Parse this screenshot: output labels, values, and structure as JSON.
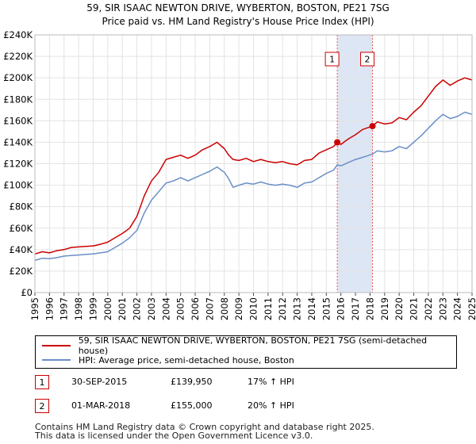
{
  "colors": {
    "property": "#cc0000",
    "hpi": "#6a8fc8",
    "shade": "#dde6f5",
    "grid": "#e3e3e3",
    "vline": "#e05a5a"
  },
  "chart_data": {
    "type": "line",
    "title": "59, SIR ISAAC NEWTON DRIVE, WYBERTON, BOSTON, PE21 7SG",
    "subtitle": "Price paid vs. HM Land Registry's House Price Index (HPI)",
    "xlabel": "",
    "ylabel": "",
    "xlim": [
      1995,
      2025
    ],
    "ylim": [
      0,
      240000
    ],
    "y_ticks": [
      {
        "value": 0,
        "label": "£0"
      },
      {
        "value": 20000,
        "label": "£20K"
      },
      {
        "value": 40000,
        "label": "£40K"
      },
      {
        "value": 60000,
        "label": "£60K"
      },
      {
        "value": 80000,
        "label": "£80K"
      },
      {
        "value": 100000,
        "label": "£100K"
      },
      {
        "value": 120000,
        "label": "£120K"
      },
      {
        "value": 140000,
        "label": "£140K"
      },
      {
        "value": 160000,
        "label": "£160K"
      },
      {
        "value": 180000,
        "label": "£180K"
      },
      {
        "value": 200000,
        "label": "£200K"
      },
      {
        "value": 220000,
        "label": "£220K"
      },
      {
        "value": 240000,
        "label": "£240K"
      }
    ],
    "x_ticks": [
      "1995",
      "1996",
      "1997",
      "1998",
      "1999",
      "2000",
      "2001",
      "2002",
      "2003",
      "2004",
      "2005",
      "2006",
      "2007",
      "2008",
      "2009",
      "2010",
      "2011",
      "2012",
      "2013",
      "2014",
      "2015",
      "2016",
      "2017",
      "2018",
      "2019",
      "2020",
      "2021",
      "2022",
      "2023",
      "2024",
      "2025"
    ],
    "shaded_period": [
      2015.75,
      2018.17
    ],
    "series": [
      {
        "name": "59, SIR ISAAC NEWTON DRIVE, WYBERTON, BOSTON, PE21 7SG (semi-detached house)",
        "color": "#cc0000",
        "x": [
          1995,
          1995.5,
          1996,
          1996.5,
          1997,
          1997.5,
          1998,
          1998.5,
          1999,
          1999.5,
          2000,
          2000.5,
          2001,
          2001.5,
          2002,
          2002.5,
          2003,
          2003.5,
          2004,
          2004.5,
          2005,
          2005.5,
          2006,
          2006.5,
          2007,
          2007.5,
          2008,
          2008.3,
          2008.6,
          2009,
          2009.5,
          2010,
          2010.5,
          2011,
          2011.5,
          2012,
          2012.5,
          2013,
          2013.5,
          2014,
          2014.5,
          2015,
          2015.5,
          2015.75,
          2016,
          2016.5,
          2017,
          2017.5,
          2018.17,
          2018.5,
          2019,
          2019.5,
          2020,
          2020.5,
          2021,
          2021.5,
          2022,
          2022.5,
          2023,
          2023.5,
          2024,
          2024.5,
          2025
        ],
        "values": [
          36000,
          38000,
          37000,
          39000,
          40000,
          42000,
          42500,
          43000,
          43500,
          45000,
          47000,
          51000,
          55000,
          60000,
          71000,
          90000,
          104000,
          112000,
          124000,
          126000,
          128000,
          125000,
          128000,
          133000,
          136000,
          140000,
          134000,
          128000,
          124000,
          123000,
          125000,
          122000,
          124000,
          122000,
          121000,
          122000,
          120000,
          119000,
          123000,
          124000,
          130000,
          133000,
          136000,
          139950,
          138000,
          143000,
          147000,
          152000,
          155000,
          159000,
          157000,
          158000,
          163000,
          161000,
          168000,
          174000,
          183000,
          192000,
          198000,
          193000,
          197000,
          200000,
          198000
        ]
      },
      {
        "name": "HPI: Average price, semi-detached house, Boston",
        "color": "#6a8fc8",
        "x": [
          1995,
          1995.5,
          1996,
          1996.5,
          1997,
          1997.5,
          1998,
          1998.5,
          1999,
          1999.5,
          2000,
          2000.5,
          2001,
          2001.5,
          2002,
          2002.5,
          2003,
          2003.5,
          2004,
          2004.5,
          2005,
          2005.5,
          2006,
          2006.5,
          2007,
          2007.5,
          2008,
          2008.3,
          2008.6,
          2009,
          2009.5,
          2010,
          2010.5,
          2011,
          2011.5,
          2012,
          2012.5,
          2013,
          2013.5,
          2014,
          2014.5,
          2015,
          2015.5,
          2015.75,
          2016,
          2016.5,
          2017,
          2017.5,
          2018.17,
          2018.5,
          2019,
          2019.5,
          2020,
          2020.5,
          2021,
          2021.5,
          2022,
          2022.5,
          2023,
          2023.5,
          2024,
          2024.5,
          2025
        ],
        "values": [
          30000,
          32000,
          31500,
          32500,
          34000,
          34500,
          35000,
          35500,
          36000,
          37000,
          38000,
          42000,
          46000,
          51000,
          58000,
          74000,
          86000,
          94000,
          102000,
          104000,
          107000,
          104000,
          107000,
          110000,
          113000,
          117000,
          112000,
          106000,
          98000,
          100000,
          102000,
          101000,
          103000,
          101000,
          100000,
          101000,
          100000,
          98000,
          102000,
          103000,
          107000,
          111000,
          114000,
          119000,
          118000,
          121000,
          124000,
          126000,
          129000,
          132000,
          131000,
          132000,
          136000,
          134000,
          140000,
          146000,
          153000,
          160000,
          166000,
          162000,
          164000,
          168000,
          166000
        ]
      }
    ],
    "sale_points": [
      {
        "label": "1",
        "x": 2015.75,
        "value": 139950
      },
      {
        "label": "2",
        "x": 2018.17,
        "value": 155000
      }
    ]
  },
  "legend": {
    "property": "59, SIR ISAAC NEWTON DRIVE, WYBERTON, BOSTON, PE21 7SG (semi-detached house)",
    "hpi": "HPI: Average price, semi-detached house, Boston"
  },
  "sales": [
    {
      "num": "1",
      "date": "30-SEP-2015",
      "price": "£139,950",
      "hpi": "17% ↑ HPI"
    },
    {
      "num": "2",
      "date": "01-MAR-2018",
      "price": "£155,000",
      "hpi": "20% ↑ HPI"
    }
  ],
  "footer": {
    "line1": "Contains HM Land Registry data © Crown copyright and database right 2025.",
    "line2": "This data is licensed under the Open Government Licence v3.0."
  }
}
